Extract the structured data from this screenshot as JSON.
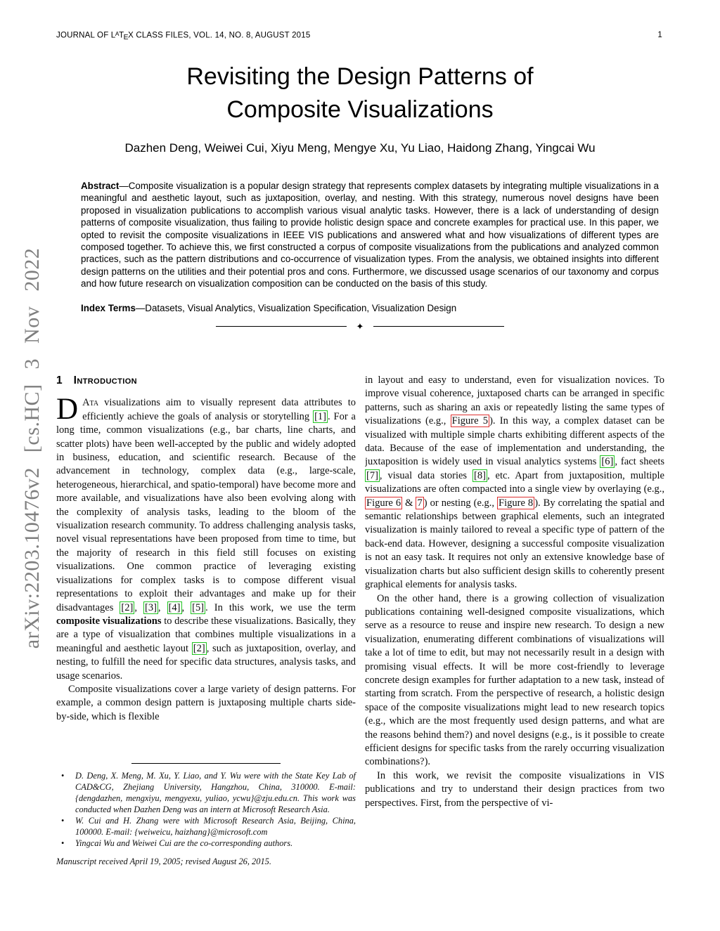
{
  "header": {
    "journal_pre": "JOURNAL OF L",
    "latex_sup": "A",
    "latex_mid": "T",
    "latex_sub": "E",
    "journal_post": "X CLASS FILES, VOL. 14, NO. 8, AUGUST 2015",
    "page_number": "1"
  },
  "arxiv_banner": "arXiv:2203.10476v2  [cs.HC]  3 Nov 2022",
  "title_line1": "Revisiting the Design Patterns of",
  "title_line2": "Composite Visualizations",
  "authors": "Dazhen Deng, Weiwei Cui, Xiyu Meng, Mengye Xu, Yu Liao, Haidong Zhang, Yingcai Wu",
  "abstract": {
    "label": "Abstract",
    "body": "—Composite visualization is a popular design strategy that represents complex datasets by integrating multiple visualizations in a meaningful and aesthetic layout, such as juxtaposition, overlay, and nesting. With this strategy, numerous novel designs have been proposed in visualization publications to accomplish various visual analytic tasks. However, there is a lack of understanding of design patterns of composite visualization, thus failing to provide holistic design space and concrete examples for practical use. In this paper, we opted to revisit the composite visualizations in IEEE VIS publications and answered what and how visualizations of different types are composed together. To achieve this, we first constructed a corpus of composite visualizations from the publications and analyzed common practices, such as the pattern distributions and co-occurrence of visualization types. From the analysis, we obtained insights into different design patterns on the utilities and their potential pros and cons. Furthermore, we discussed usage scenarios of our taxonomy and corpus and how future research on visualization composition can be conducted on the basis of this study."
  },
  "index_terms": {
    "label": "Index Terms",
    "body": "—Datasets, Visual Analytics, Visualization Specification, Visualization Design"
  },
  "divider_glyph": "✦",
  "intro": {
    "number": "1",
    "title": "Introduction"
  },
  "left_column": {
    "paragraphs": [
      {
        "dropcap": "D",
        "segments": [
          {
            "text": "Ata",
            "smallcaps": true
          },
          {
            "text": " visualizations aim to visually represent data attributes to efficiently achieve the goals of analysis or storytelling "
          },
          {
            "text": "[1]",
            "box": "green"
          },
          {
            "text": ". For a long time, common visualizations (e.g., bar charts, line charts, and scatter plots) have been well-accepted by the public and widely adopted in business, education, and scientific research. Because of the advancement in technology, complex data (e.g., large-scale, heterogeneous, hierarchical, and spatio-temporal) have become more and more available, and visualizations have also been evolving along with the complexity of analysis tasks, leading to the bloom of the visualization research community. To address challenging analysis tasks, novel visual representations have been proposed from time to time, but the majority of research in this field still focuses on existing visualizations. One common practice of leveraging existing visualizations for complex tasks is to compose different visual representations to exploit their advantages and make up for their disadvantages "
          },
          {
            "text": "[2]",
            "box": "green"
          },
          {
            "text": ", "
          },
          {
            "text": "[3]",
            "box": "green"
          },
          {
            "text": ", "
          },
          {
            "text": "[4]",
            "box": "green"
          },
          {
            "text": ", "
          },
          {
            "text": "[5]",
            "box": "green"
          },
          {
            "text": ". In this work, we use the term "
          },
          {
            "text": "composite visualizations",
            "bold": true
          },
          {
            "text": " to describe these visualizations. Basically, they are a type of visualization that combines multiple visualizations in a meaningful and aesthetic layout "
          },
          {
            "text": "[2]",
            "box": "green"
          },
          {
            "text": ", such as juxtaposition, overlay, and nesting, to fulfill the need for specific data structures, analysis tasks, and usage scenarios."
          }
        ]
      },
      {
        "indent": true,
        "segments": [
          {
            "text": "Composite visualizations cover a large variety of design patterns. For example, a common design pattern is juxtaposing multiple charts side-by-side, which is flexible"
          }
        ]
      }
    ]
  },
  "right_column": {
    "paragraphs": [
      {
        "segments": [
          {
            "text": "in layout and easy to understand, even for visualization novices. To improve visual coherence, juxtaposed charts can be arranged in specific patterns, such as sharing an axis or repeatedly listing the same types of visualizations (e.g., "
          },
          {
            "text": "Figure 5",
            "box": "red"
          },
          {
            "text": "). In this way, a complex dataset can be visualized with multiple simple charts exhibiting different aspects of the data. Because of the ease of implementation and understanding, the juxtaposition is widely used in visual analytics systems "
          },
          {
            "text": "[6]",
            "box": "green"
          },
          {
            "text": ", fact sheets "
          },
          {
            "text": "[7]",
            "box": "green"
          },
          {
            "text": ", visual data stories "
          },
          {
            "text": "[8]",
            "box": "green"
          },
          {
            "text": ", etc. Apart from juxtaposition, multiple visualizations are often compacted into a single view by overlaying (e.g., "
          },
          {
            "text": "Figure 6",
            "box": "red"
          },
          {
            "text": " & "
          },
          {
            "text": "7",
            "box": "red"
          },
          {
            "text": ") or nesting (e.g., "
          },
          {
            "text": "Figure 8",
            "box": "red"
          },
          {
            "text": "). By correlating the spatial and semantic relationships between graphical elements, such an integrated visualization is mainly tailored to reveal a specific type of pattern of the back-end data. However, designing a successful composite visualization is not an easy task. It requires not only an extensive knowledge base of visualization charts but also sufficient design skills to coherently present graphical elements for analysis tasks."
          }
        ]
      },
      {
        "indent": true,
        "segments": [
          {
            "text": "On the other hand, there is a growing collection of visualization publications containing well-designed composite visualizations, which serve as a resource to reuse and inspire new research. To design a new visualization, enumerating different combinations of visualizations will take a lot of time to edit, but may not necessarily result in a design with promising visual effects. It will be more cost-friendly to leverage concrete design examples for further adaptation to a new task, instead of starting from scratch. From the perspective of research, a holistic design space of the composite visualizations might lead to new research topics (e.g., which are the most frequently used design patterns, and what are the reasons behind them?) and novel designs (e.g., is it possible to create efficient designs for specific tasks from the rarely occurring visualization combinations?)."
          }
        ]
      },
      {
        "indent": true,
        "segments": [
          {
            "text": "In this work, we revisit the composite visualizations in VIS publications and try to understand their design practices from two perspectives. First, from the perspective of vi-"
          }
        ]
      }
    ]
  },
  "footnotes": {
    "bullet_glyph": "•",
    "items": [
      "D. Deng, X. Meng, M. Xu, Y. Liao, and Y. Wu were with the State Key Lab of CAD&CG, Zhejiang University, Hangzhou, China, 310000. E-mail: {dengdazhen, mengxiyu, mengyexu, yuliao, ycwu}@zju.edu.cn. This work was conducted when Dazhen Deng was an intern at Microsoft Research Asia.",
      "W. Cui and H. Zhang were with Microsoft Research Asia, Beijing, China, 100000. E-mail: {weiweicu, haizhang}@microsoft.com",
      "Yingcai Wu and Weiwei Cui are the co-corresponding authors."
    ],
    "manuscript": "Manuscript received April 19, 2005; revised August 26, 2015."
  },
  "colors": {
    "citation_box": "#21c421",
    "figure_box": "#de3030",
    "arxiv_gray": "#7f7f7f"
  }
}
